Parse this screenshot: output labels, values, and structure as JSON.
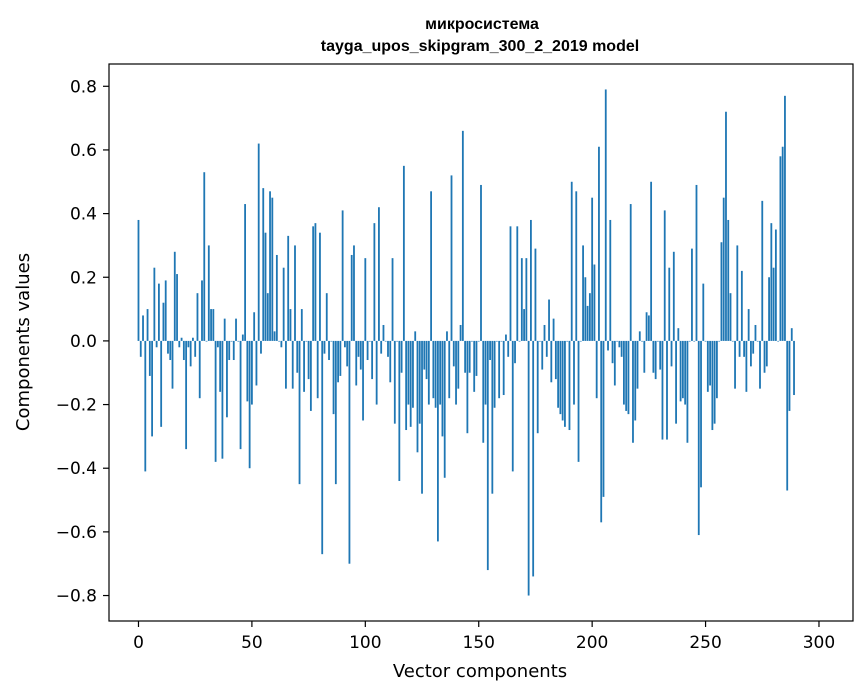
{
  "chart_data": {
    "type": "bar",
    "title": [
      "микросистема",
      "tayga_upos_skipgram_300_2_2019 model"
    ],
    "xlabel": "Vector components",
    "ylabel": "Components values",
    "xlim": [
      -13,
      315
    ],
    "ylim": [
      -0.88,
      0.87
    ],
    "xticks": [
      0,
      50,
      100,
      150,
      200,
      250,
      300
    ],
    "yticks": [
      0.8,
      0.6,
      0.4,
      0.2,
      0.0,
      -0.2,
      -0.4,
      -0.6,
      -0.8
    ],
    "ytick_labels": [
      "0.8",
      "0.6",
      "0.4",
      "0.2",
      "0.0",
      "−0.2",
      "−0.4",
      "−0.6",
      "−0.8"
    ],
    "grid": false,
    "bar_color": "#1f77b4",
    "values": [
      0.38,
      -0.05,
      0.08,
      -0.41,
      0.1,
      -0.11,
      -0.3,
      0.23,
      -0.02,
      0.18,
      -0.27,
      0.12,
      0.19,
      -0.04,
      -0.06,
      -0.15,
      0.28,
      0.21,
      -0.02,
      0.01,
      -0.06,
      -0.34,
      -0.02,
      -0.08,
      0.01,
      -0.05,
      0.15,
      -0.18,
      0.19,
      0.53,
      0.0,
      0.3,
      0.1,
      0.1,
      -0.38,
      -0.02,
      -0.16,
      -0.37,
      0.07,
      -0.24,
      -0.06,
      0.0,
      -0.06,
      0.07,
      0.0,
      -0.34,
      0.02,
      0.43,
      -0.19,
      -0.4,
      -0.2,
      0.09,
      -0.14,
      0.62,
      -0.04,
      0.48,
      0.34,
      0.15,
      0.47,
      0.45,
      0.03,
      0.27,
      0.0,
      -0.02,
      0.23,
      -0.15,
      0.33,
      0.1,
      -0.15,
      0.3,
      -0.1,
      -0.45,
      0.1,
      -0.16,
      0.0,
      -0.12,
      -0.22,
      0.36,
      0.37,
      -0.18,
      0.34,
      -0.67,
      -0.04,
      0.15,
      -0.06,
      0.0,
      -0.23,
      -0.45,
      -0.13,
      -0.11,
      0.41,
      -0.02,
      -0.08,
      -0.7,
      0.27,
      0.3,
      -0.14,
      -0.05,
      -0.09,
      -0.25,
      0.26,
      -0.06,
      0.0,
      -0.12,
      0.37,
      -0.2,
      0.42,
      -0.04,
      0.05,
      0.0,
      -0.05,
      -0.13,
      0.26,
      -0.26,
      0.0,
      -0.44,
      -0.1,
      0.55,
      -0.28,
      -0.2,
      -0.27,
      -0.21,
      0.03,
      -0.35,
      -0.26,
      -0.48,
      -0.09,
      -0.12,
      -0.2,
      0.47,
      -0.18,
      -0.21,
      -0.63,
      -0.2,
      -0.3,
      -0.43,
      0.03,
      -0.18,
      0.52,
      -0.08,
      -0.2,
      -0.15,
      0.05,
      0.66,
      -0.1,
      -0.29,
      -0.1,
      0.0,
      -0.16,
      -0.11,
      0.0,
      0.49,
      -0.32,
      -0.2,
      -0.72,
      -0.06,
      -0.48,
      -0.21,
      0.0,
      -0.18,
      0.0,
      -0.17,
      0.02,
      -0.05,
      0.36,
      -0.41,
      -0.07,
      0.36,
      0.0,
      0.26,
      0.1,
      0.26,
      -0.8,
      0.38,
      -0.74,
      0.29,
      -0.29,
      0.0,
      -0.09,
      0.05,
      -0.05,
      0.13,
      -0.13,
      0.07,
      -0.12,
      -0.21,
      -0.23,
      -0.25,
      -0.27,
      0.0,
      -0.28,
      0.5,
      -0.2,
      0.47,
      -0.38,
      0.0,
      0.3,
      0.2,
      0.11,
      0.15,
      0.45,
      0.24,
      -0.18,
      0.61,
      -0.57,
      -0.49,
      0.79,
      -0.03,
      0.38,
      -0.07,
      -0.14,
      0.0,
      -0.02,
      -0.05,
      -0.2,
      -0.22,
      -0.23,
      0.43,
      -0.32,
      -0.25,
      -0.15,
      0.03,
      0.0,
      -0.1,
      0.09,
      0.08,
      0.5,
      -0.1,
      -0.12,
      0.0,
      -0.09,
      -0.31,
      0.41,
      -0.31,
      0.23,
      -0.08,
      0.28,
      -0.26,
      0.04,
      -0.19,
      -0.18,
      -0.2,
      -0.32,
      0.0,
      0.29,
      0.0,
      0.49,
      -0.61,
      -0.46,
      0.18,
      0.0,
      -0.16,
      -0.14,
      -0.28,
      -0.26,
      -0.18,
      0.0,
      0.31,
      0.45,
      0.72,
      0.38,
      0.15,
      0.0,
      -0.15,
      0.3,
      -0.05,
      0.22,
      -0.05,
      -0.16,
      0.1,
      -0.08,
      -0.04,
      0.05,
      0.0,
      -0.15,
      0.44,
      -0.1,
      -0.08,
      0.2,
      0.37,
      0.23,
      0.35,
      0.0,
      0.58,
      0.61,
      0.77,
      -0.47,
      -0.22,
      0.04,
      -0.17
    ]
  }
}
